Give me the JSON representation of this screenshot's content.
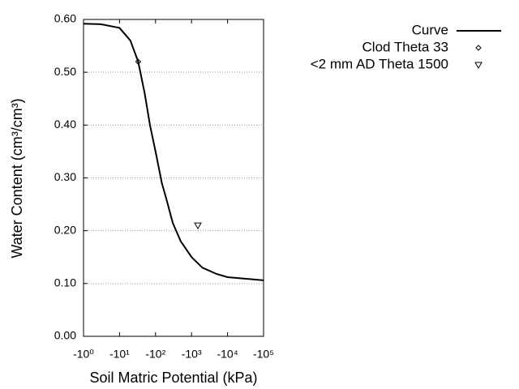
{
  "chart_data": {
    "type": "line",
    "xlabel": "Soil Matric Potential (kPa)",
    "ylabel": "Water Content (cm³/cm³)",
    "xscale": "log",
    "xlim": [
      1,
      100000
    ],
    "xticks": [
      {
        "value": 1,
        "label": "-10⁰"
      },
      {
        "value": 10,
        "label": "-10¹"
      },
      {
        "value": 100,
        "label": "-10²"
      },
      {
        "value": 1000,
        "label": "-10³"
      },
      {
        "value": 10000,
        "label": "-10⁴"
      },
      {
        "value": 100000,
        "label": "-10⁵"
      }
    ],
    "ylim": [
      0,
      0.6
    ],
    "yticks": [
      {
        "value": 0,
        "label": "0.00"
      },
      {
        "value": 0.1,
        "label": "0.10"
      },
      {
        "value": 0.2,
        "label": "0.20"
      },
      {
        "value": 0.3,
        "label": "0.30"
      },
      {
        "value": 0.4,
        "label": "0.40"
      },
      {
        "value": 0.5,
        "label": "0.50"
      },
      {
        "value": 0.6,
        "label": "0.60"
      }
    ],
    "grid": true,
    "legend": "top-right",
    "series": [
      {
        "name": "Curve",
        "color": "#000000",
        "marker": "line",
        "x": [
          1,
          3,
          10,
          20,
          33,
          50,
          70,
          100,
          150,
          200,
          300,
          500,
          1000,
          2000,
          5000,
          10000,
          100000
        ],
        "values": [
          0.592,
          0.591,
          0.584,
          0.56,
          0.52,
          0.46,
          0.4,
          0.35,
          0.29,
          0.26,
          0.215,
          0.18,
          0.15,
          0.13,
          0.118,
          0.112,
          0.106
        ]
      },
      {
        "name": "Clod Theta 33",
        "color": "#000000",
        "marker": "diamond",
        "x": [
          33
        ],
        "values": [
          0.52
        ]
      },
      {
        "name": "<2 mm AD Theta 1500",
        "color": "#000000",
        "marker": "triangle-down",
        "x": [
          1500
        ],
        "values": [
          0.21
        ]
      }
    ]
  }
}
